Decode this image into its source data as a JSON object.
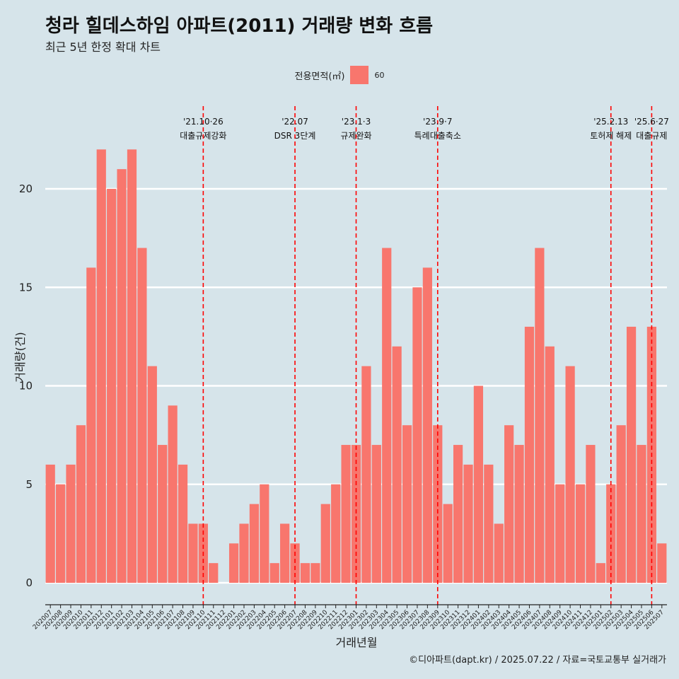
{
  "title": "청라 힐데스하임 아파트(2011) 거래량 변화 흐름",
  "subtitle": "최근 5년 한정 확대 차트",
  "legend": {
    "title": "전용면적(㎡)",
    "label": "60",
    "color": "#f8766d"
  },
  "caption": "©디아파트(dapt.kr) / 2025.07.22 / 자료=국토교통부 실거래가",
  "chart_data": {
    "type": "bar",
    "xlabel": "거래년월",
    "ylabel": "거래량(건)",
    "ylim": [
      0,
      22
    ],
    "yticks": [
      0,
      5,
      10,
      15,
      20
    ],
    "categories": [
      "202007",
      "202008",
      "202009",
      "202010",
      "202011",
      "202012",
      "202101",
      "202102",
      "202103",
      "202104",
      "202105",
      "202106",
      "202107",
      "202108",
      "202109",
      "202110",
      "202111",
      "202112",
      "202201",
      "202202",
      "202203",
      "202204",
      "202205",
      "202206",
      "202207",
      "202208",
      "202209",
      "202210",
      "202211",
      "202212",
      "202301",
      "202302",
      "202303",
      "202304",
      "202305",
      "202306",
      "202307",
      "202308",
      "202309",
      "202310",
      "202311",
      "202312",
      "202401",
      "202402",
      "202403",
      "202404",
      "202405",
      "202406",
      "202407",
      "202408",
      "202409",
      "202410",
      "202411",
      "202412",
      "202501",
      "202502",
      "202503",
      "202504",
      "202505",
      "202506",
      "202507"
    ],
    "series": [
      {
        "name": "60",
        "color": "#f8766d",
        "values": [
          6,
          5,
          6,
          8,
          16,
          22,
          20,
          21,
          22,
          17,
          11,
          7,
          9,
          6,
          3,
          3,
          1,
          0,
          2,
          3,
          4,
          5,
          1,
          3,
          2,
          1,
          1,
          4,
          5,
          7,
          7,
          11,
          7,
          17,
          12,
          8,
          15,
          16,
          8,
          4,
          7,
          6,
          10,
          6,
          3,
          8,
          7,
          13,
          17,
          12,
          5,
          11,
          5,
          7,
          1,
          5,
          8,
          13,
          7,
          13,
          2
        ]
      }
    ],
    "annotations": [
      {
        "category": "202110",
        "date": "'21.10·26",
        "label": "대출규제강화"
      },
      {
        "category": "202207",
        "date": "'22.07",
        "label": "DSR 3단계"
      },
      {
        "category": "202301",
        "date": "'23.1·3",
        "label": "규제완화"
      },
      {
        "category": "202309",
        "date": "'23.9·7",
        "label": "특례대출축소"
      },
      {
        "category": "202502",
        "date": "'25.2.13",
        "label": "토허제 해제"
      },
      {
        "category": "202506",
        "date": "'25.6·27",
        "label": "대출규제"
      }
    ]
  }
}
